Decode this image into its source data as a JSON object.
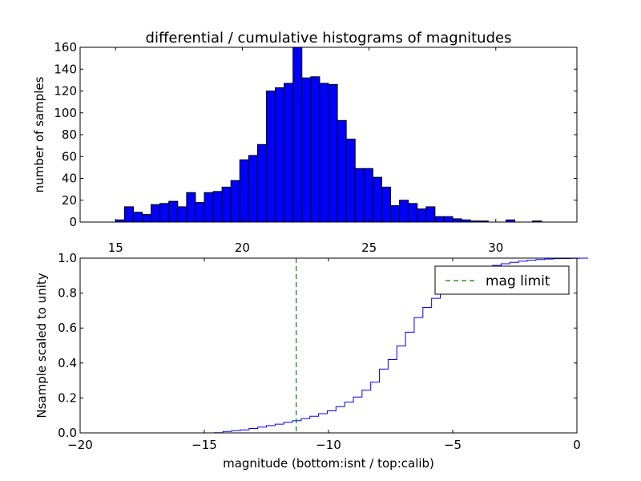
{
  "chart_data": [
    {
      "type": "bar",
      "title": "differential / cumulative histograms of magnitudes",
      "xlabel": "",
      "ylabel": "number of samples",
      "xlim": [
        13.6,
        33.2
      ],
      "ylim": [
        0,
        160
      ],
      "xticks": [
        "15",
        "20",
        "25",
        "30"
      ],
      "yticks": [
        "0",
        "20",
        "40",
        "60",
        "80",
        "100",
        "120",
        "140",
        "160"
      ],
      "bin_start": 15.0,
      "bin_width": 0.35,
      "bar_color": "#0000ff",
      "values": [
        2,
        14,
        9,
        7,
        16,
        17,
        19,
        14,
        27,
        18,
        27,
        28,
        32,
        38,
        57,
        61,
        71,
        120,
        123,
        127,
        160,
        132,
        133,
        127,
        126,
        93,
        76,
        49,
        49,
        41,
        32,
        15,
        20,
        17,
        12,
        14,
        5,
        5,
        3,
        2,
        1,
        1,
        0,
        0,
        2,
        0,
        0,
        1
      ]
    },
    {
      "type": "line",
      "title": "",
      "xlabel": "magnitude (bottom:isnt / top:calib)",
      "ylabel": "Nsample scaled to unity",
      "xlim": [
        -20,
        0
      ],
      "ylim": [
        0,
        1
      ],
      "xticks": [
        "−20",
        "−15",
        "−10",
        "−5",
        "0"
      ],
      "yticks": [
        "0.0",
        "0.2",
        "0.4",
        "0.6",
        "0.8",
        "1.0"
      ],
      "line_color": "#0000ff",
      "step_start": -14.6,
      "step_width": 0.35,
      "cumulative": [
        0.001,
        0.008,
        0.013,
        0.017,
        0.025,
        0.033,
        0.042,
        0.05,
        0.061,
        0.07,
        0.082,
        0.095,
        0.11,
        0.126,
        0.15,
        0.176,
        0.205,
        0.244,
        0.29,
        0.365,
        0.42,
        0.497,
        0.576,
        0.66,
        0.718,
        0.77,
        0.82,
        0.85,
        0.875,
        0.905,
        0.928,
        0.945,
        0.958,
        0.968,
        0.976,
        0.983,
        0.988,
        0.992,
        0.995,
        0.997,
        0.998,
        0.999,
        1.0
      ],
      "mag_limit": -11.3,
      "mag_limit_color": "#008000",
      "legend": {
        "label": "mag limit",
        "position": "top-right"
      }
    }
  ]
}
